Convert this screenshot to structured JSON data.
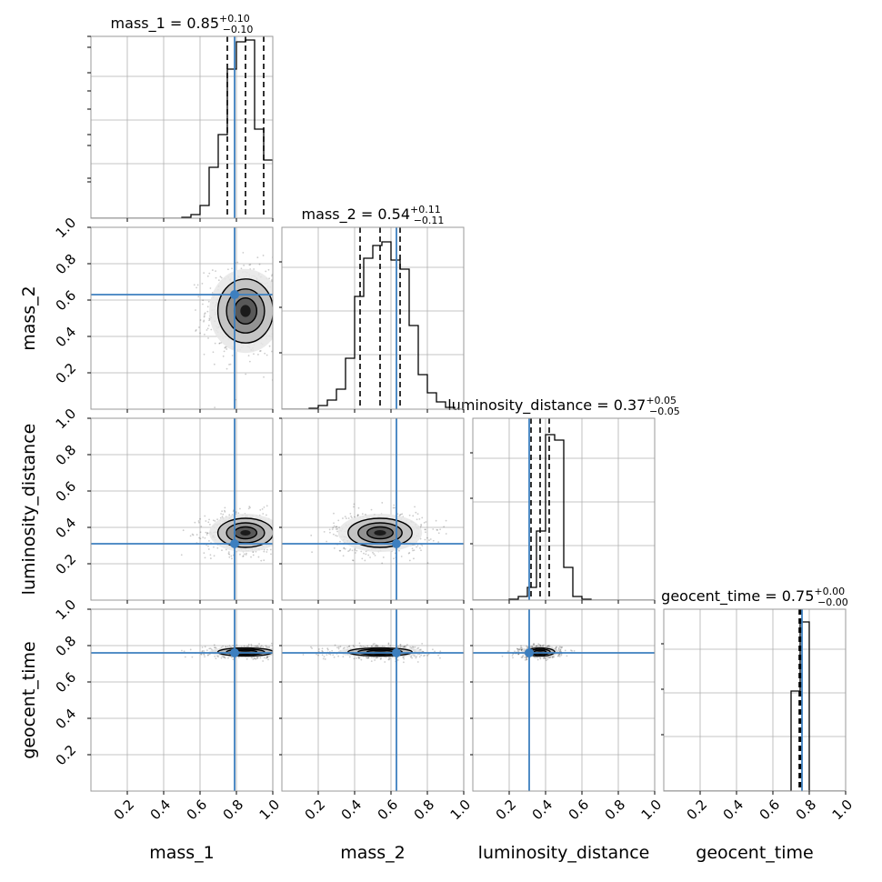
{
  "chart_data": {
    "type": "corner",
    "parameters": [
      "mass_1",
      "mass_2",
      "luminosity_distance",
      "geocent_time"
    ],
    "axis_range": [
      0,
      1
    ],
    "tick_values": [
      0.2,
      0.4,
      0.6,
      0.8,
      1.0
    ],
    "tick_labels": [
      "0.2",
      "0.4",
      "0.6",
      "0.8",
      "1.0"
    ],
    "truths": [
      0.79,
      0.63,
      0.31,
      0.76
    ],
    "grid": true,
    "truth_color": "#3d7fbf",
    "titles": [
      {
        "name": "mass_1",
        "median": "0.85",
        "plus": "+0.10",
        "minus": "−0.10"
      },
      {
        "name": "mass_2",
        "median": "0.54",
        "plus": "+0.11",
        "minus": "−0.11"
      },
      {
        "name": "luminosity_distance",
        "median": "0.37",
        "plus": "+0.05",
        "minus": "−0.05"
      },
      {
        "name": "geocent_time",
        "median": "0.75",
        "plus": "+0.00",
        "minus": "−0.00"
      }
    ],
    "quantiles": [
      [
        0.75,
        0.85,
        0.95
      ],
      [
        0.43,
        0.54,
        0.65
      ],
      [
        0.32,
        0.37,
        0.42
      ],
      [
        0.745,
        0.75,
        0.755
      ]
    ],
    "histograms": [
      {
        "bin_width": 0.05,
        "start": 0.5,
        "counts": [
          0.005,
          0.02,
          0.07,
          0.28,
          0.46,
          0.82,
          0.97,
          0.98,
          0.49,
          0.32
        ]
      },
      {
        "bin_width": 0.05,
        "start": 0.15,
        "counts": [
          0.005,
          0.02,
          0.05,
          0.11,
          0.28,
          0.62,
          0.83,
          0.9,
          0.92,
          0.82,
          0.77,
          0.46,
          0.19,
          0.09,
          0.04,
          0.01
        ]
      },
      {
        "bin_width": 0.05,
        "start": 0.2,
        "counts": [
          0.005,
          0.02,
          0.07,
          0.38,
          0.91,
          0.88,
          0.18,
          0.02,
          0.005
        ]
      },
      {
        "bin_width": 0.05,
        "start": 0.7,
        "counts": [
          0.55,
          0.93
        ]
      }
    ],
    "contours_2d": [
      {
        "x": "mass_1",
        "y": "mass_2",
        "mean": [
          0.85,
          0.54
        ],
        "sd": [
          0.095,
          0.11
        ]
      },
      {
        "x": "mass_1",
        "y": "luminosity_distance",
        "mean": [
          0.85,
          0.37
        ],
        "sd": [
          0.095,
          0.05
        ]
      },
      {
        "x": "mass_2",
        "y": "luminosity_distance",
        "mean": [
          0.54,
          0.37
        ],
        "sd": [
          0.11,
          0.05
        ]
      },
      {
        "x": "mass_1",
        "y": "geocent_time",
        "mean": [
          0.85,
          0.765
        ],
        "sd": [
          0.095,
          0.014
        ]
      },
      {
        "x": "mass_2",
        "y": "geocent_time",
        "mean": [
          0.54,
          0.765
        ],
        "sd": [
          0.11,
          0.014
        ]
      },
      {
        "x": "luminosity_distance",
        "y": "geocent_time",
        "mean": [
          0.37,
          0.765
        ],
        "sd": [
          0.05,
          0.014
        ]
      }
    ]
  }
}
